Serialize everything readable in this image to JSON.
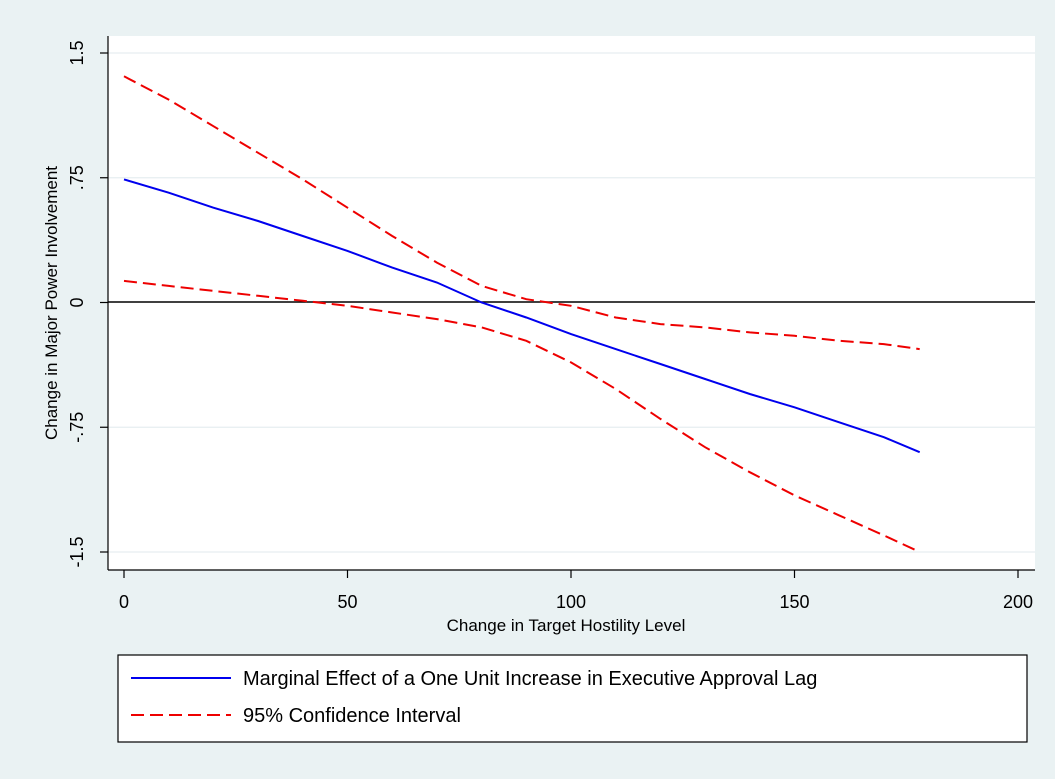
{
  "chart_data": {
    "type": "line",
    "xlabel": "Change in Target Hostility Level",
    "ylabel": "Change in Major Power Involvement",
    "xlim": [
      0,
      200
    ],
    "ylim": [
      -1.5,
      1.5
    ],
    "x_ticks": [
      0,
      50,
      100,
      150,
      200
    ],
    "x_tick_labels": [
      "0",
      "50",
      "100",
      "150",
      "200"
    ],
    "y_ticks": [
      -1.5,
      -0.75,
      0,
      0.75,
      1.5
    ],
    "y_tick_labels": [
      "-1.5",
      "-.75",
      "0",
      ".75",
      "1.5"
    ],
    "grid": true,
    "reference_line_y": 0,
    "legend_position": "bottom",
    "x": [
      0,
      10,
      20,
      30,
      40,
      50,
      60,
      70,
      80,
      90,
      100,
      110,
      120,
      130,
      140,
      150,
      160,
      170,
      178
    ],
    "series": [
      {
        "name": "Marginal Effect of a One Unit Increase in Executive Approval Lag",
        "style": "solid",
        "color": "#0000ee",
        "values": [
          0.74,
          0.66,
          0.57,
          0.49,
          0.4,
          0.31,
          0.21,
          0.12,
          0.0,
          -0.09,
          -0.19,
          -0.28,
          -0.37,
          -0.46,
          -0.55,
          -0.63,
          -0.72,
          -0.81,
          -0.9
        ]
      },
      {
        "name": "95% Confidence Interval",
        "style": "dashed",
        "color": "#ee0000",
        "values": [
          1.36,
          1.22,
          1.06,
          0.9,
          0.74,
          0.57,
          0.4,
          0.24,
          0.1,
          0.02,
          -0.02,
          -0.09,
          -0.13,
          -0.15,
          -0.18,
          -0.2,
          -0.23,
          -0.25,
          -0.28
        ]
      },
      {
        "name": "",
        "style": "dashed",
        "color": "#ee0000",
        "values": [
          0.13,
          0.1,
          0.07,
          0.04,
          0.01,
          -0.02,
          -0.06,
          -0.1,
          -0.15,
          -0.23,
          -0.36,
          -0.52,
          -0.7,
          -0.87,
          -1.02,
          -1.16,
          -1.28,
          -1.4,
          -1.5
        ]
      }
    ],
    "legend": [
      {
        "label": "Marginal Effect of a One Unit Increase in Executive Approval Lag",
        "color": "#0000ee",
        "style": "solid"
      },
      {
        "label": "95% Confidence Interval",
        "color": "#ee0000",
        "style": "dashed"
      }
    ]
  }
}
